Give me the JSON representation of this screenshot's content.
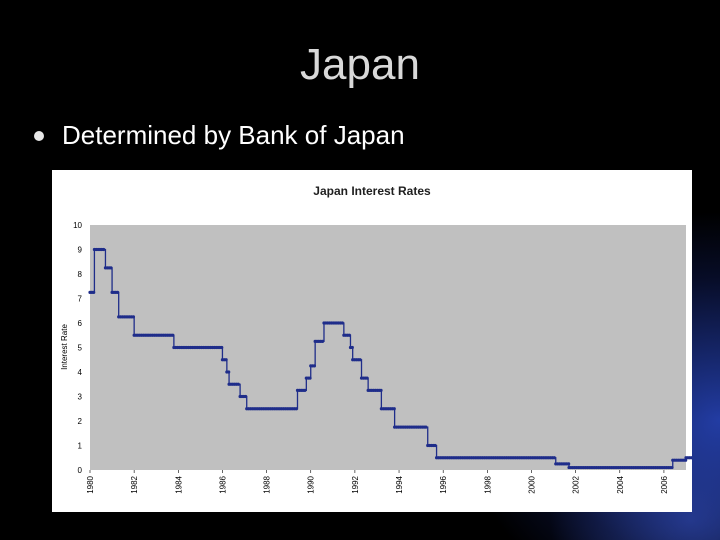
{
  "slide": {
    "title": "Japan",
    "bullet": "Determined by Bank of Japan"
  },
  "colors": {
    "series": "#1f2d8a",
    "plot_bg": "#c0c0c0",
    "title": "#1f1f1f"
  },
  "chart_data": {
    "type": "line",
    "title": "Japan Interest Rates",
    "xlabel": "",
    "ylabel": "Interest Rate",
    "ylim": [
      0,
      10
    ],
    "xlim": [
      1980,
      2007
    ],
    "yticks": [
      0,
      1,
      2,
      3,
      4,
      5,
      6,
      7,
      8,
      9,
      10
    ],
    "xticks": [
      "1980",
      "1982",
      "1984",
      "1986",
      "1988",
      "1990",
      "1992",
      "1994",
      "1996",
      "1998",
      "2000",
      "2002",
      "2004",
      "2006"
    ],
    "grid": false,
    "legend": "none",
    "steps": [
      [
        1980.0,
        7.25
      ],
      [
        1980.2,
        9.0
      ],
      [
        1980.7,
        8.25
      ],
      [
        1981.0,
        7.25
      ],
      [
        1981.3,
        6.25
      ],
      [
        1982.0,
        5.5
      ],
      [
        1983.8,
        5.0
      ],
      [
        1986.0,
        4.5
      ],
      [
        1986.2,
        4.0
      ],
      [
        1986.3,
        3.5
      ],
      [
        1986.8,
        3.0
      ],
      [
        1987.1,
        2.5
      ],
      [
        1989.4,
        3.25
      ],
      [
        1989.8,
        3.75
      ],
      [
        1990.0,
        4.25
      ],
      [
        1990.2,
        5.25
      ],
      [
        1990.6,
        6.0
      ],
      [
        1991.5,
        5.5
      ],
      [
        1991.8,
        5.0
      ],
      [
        1991.9,
        4.5
      ],
      [
        1992.3,
        3.75
      ],
      [
        1992.6,
        3.25
      ],
      [
        1993.2,
        2.5
      ],
      [
        1993.8,
        1.75
      ],
      [
        1995.3,
        1.0
      ],
      [
        1995.7,
        0.5
      ],
      [
        2001.1,
        0.25
      ],
      [
        2001.7,
        0.1
      ],
      [
        2006.4,
        0.4
      ],
      [
        2007.0,
        0.5
      ],
      [
        2007.5,
        0.5
      ]
    ]
  }
}
